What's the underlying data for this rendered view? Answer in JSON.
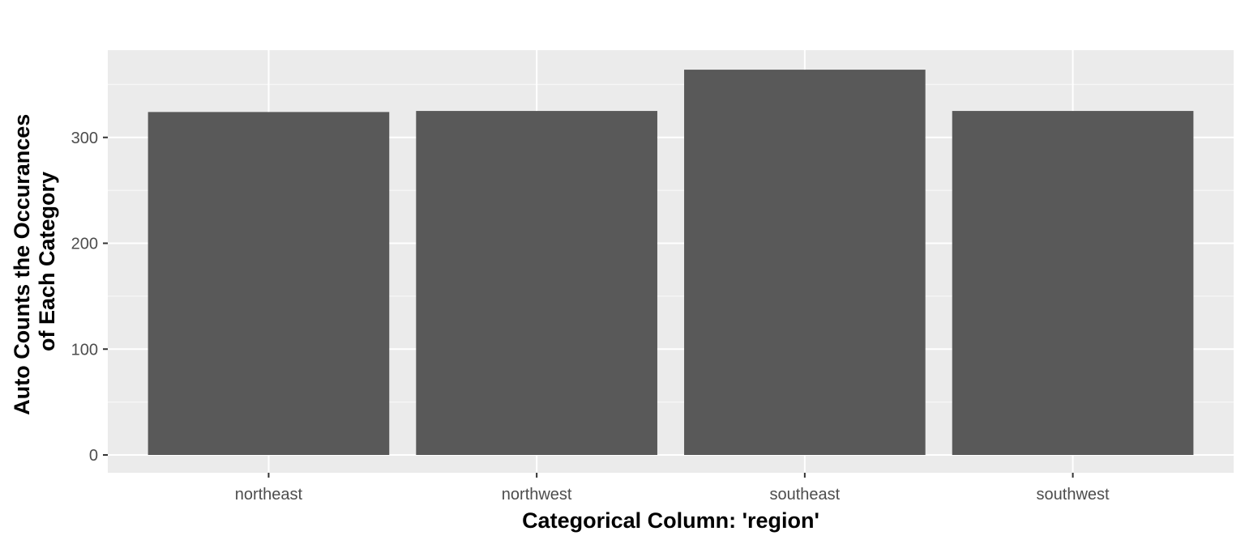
{
  "chart_data": {
    "type": "bar",
    "categories": [
      "northeast",
      "northwest",
      "southeast",
      "southwest"
    ],
    "values": [
      324,
      325,
      364,
      325
    ],
    "title": "",
    "xlabel": "Categorical Column: 'region'",
    "ylabel_lines": [
      "Auto Counts the Occurances",
      "of Each Category"
    ],
    "ylim": [
      0,
      382
    ],
    "yticks": [
      0,
      100,
      200,
      300
    ],
    "grid": true,
    "legend": "none",
    "colors": {
      "panel_background": "#ebebeb",
      "grid_major": "#ffffff",
      "grid_minor": "#f7f7f7",
      "bar_fill": "#595959",
      "tick_text": "#4d4d4d",
      "tick_mark": "#333333",
      "title_text": "#000000"
    }
  }
}
